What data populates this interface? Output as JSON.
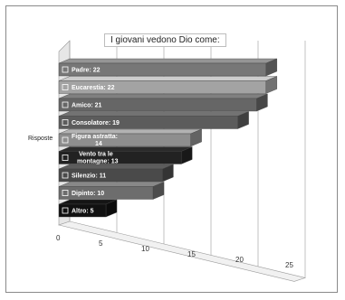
{
  "chart_data": {
    "type": "bar",
    "orientation": "horizontal",
    "style": "3d",
    "title": "I giovani vedono Dio come:",
    "ylabel": "Risposte",
    "xlabel": "",
    "xlim": [
      0,
      25
    ],
    "x_ticks": [
      "0",
      "5",
      "10",
      "15",
      "20",
      "25"
    ],
    "grid": true,
    "legend": "none",
    "categories": [
      "Padre",
      "Eucarestia",
      "Amico",
      "Consolatore",
      "Figura astratta",
      "Vento tra le montagne",
      "Silenzio",
      "Dipinto",
      "Altro"
    ],
    "values": [
      22,
      22,
      21,
      19,
      14,
      13,
      11,
      10,
      5
    ],
    "bar_labels": [
      "Padre: 22",
      "Eucarestia: 22",
      "Amico: 21",
      "Consolatore: 19",
      "Figura astratta: 14",
      "Vento tra le montagne: 13",
      "Silenzio: 11",
      "Dipinto: 10",
      "Altro: 5"
    ],
    "bar_colors": [
      "#777777",
      "#a3a3a3",
      "#666666",
      "#5c5c5c",
      "#8e8e8e",
      "#222222",
      "#4a4a4a",
      "#6d6d6d",
      "#111111"
    ]
  }
}
